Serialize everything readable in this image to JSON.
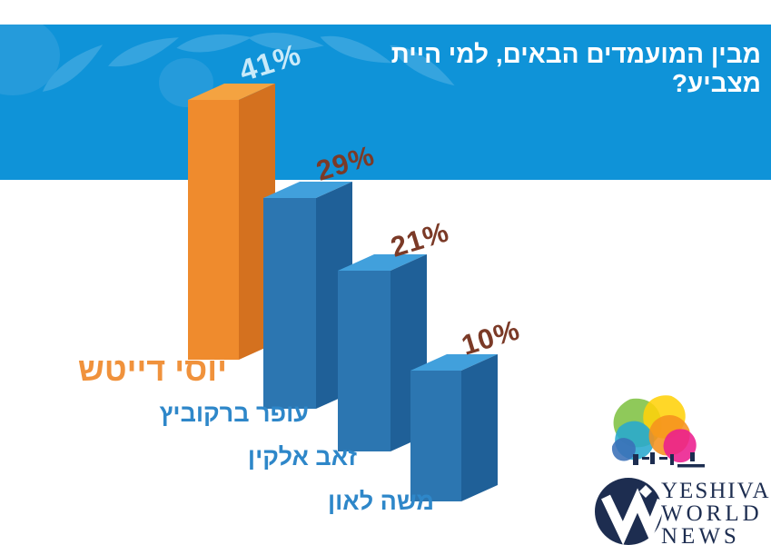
{
  "page": {
    "background": "#ffffff"
  },
  "header": {
    "title": "מבין המועמדים הבאים, למי היית מצביע?",
    "band_color": "#0f93d8",
    "title_color": "#ffffff",
    "leaf_decoration_color": "#35a4df"
  },
  "chart_data": {
    "type": "bar",
    "style": "3d-columns",
    "title": "מבין המועמדים הבאים, למי היית מצביע?",
    "categories": [
      "יוסי דייטש",
      "עופר ברקוביץ",
      "זאב אלקין",
      "משה לאון"
    ],
    "values": [
      41,
      29,
      21,
      10
    ],
    "value_labels": [
      "41%",
      "29%",
      "21%",
      "10%"
    ],
    "highlight_category": "יוסי דייטש",
    "ylim": [
      0,
      45
    ],
    "grid": false,
    "legend": false,
    "bar_face_colors": {
      "highlight_front": "#ef8b2d",
      "highlight_side": "#d4711f",
      "highlight_top": "#f4a341",
      "front": "#2c76b1",
      "side": "#1f6098",
      "top": "#41a0dc"
    },
    "value_label_colors": [
      "#c9eaf9",
      "#7b3a27",
      "#7b3a27",
      "#7b3a27"
    ],
    "category_label_colors": [
      "#f0923c",
      "#2e87c9",
      "#2e87c9",
      "#2e87c9"
    ]
  },
  "watermark": {
    "monogram": "W",
    "lines": [
      "YESHIVA",
      "WORLD",
      "NEWS"
    ],
    "color": "#1d2d50"
  }
}
